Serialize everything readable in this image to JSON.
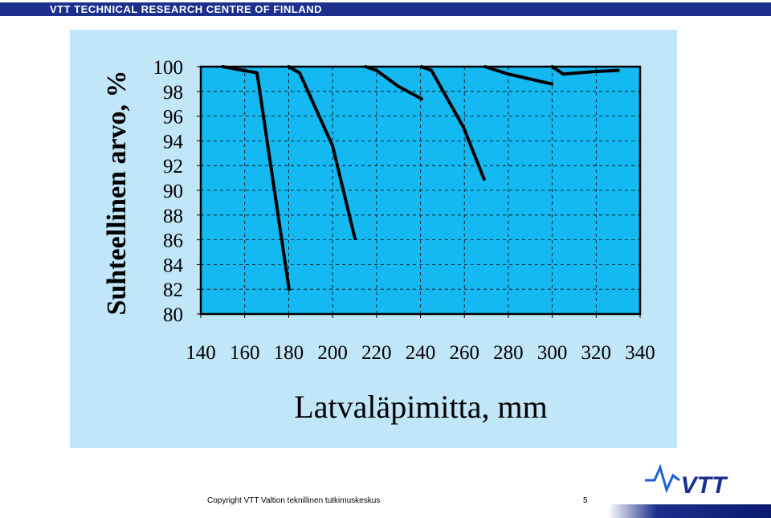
{
  "header": {
    "title": "VTT TECHNICAL RESEARCH CENTRE OF FINLAND"
  },
  "footer": {
    "copyright": "Copyright VTT Valtion teknillinen tutkimuskeskus",
    "page": 5,
    "logo": "VTT"
  },
  "chart_data": {
    "type": "line",
    "y_label": "Suhteellinen arvo, %",
    "x_label": "Latvaläpimitta, mm",
    "xlim": [
      140,
      340
    ],
    "xticks": [
      140,
      160,
      180,
      200,
      220,
      240,
      260,
      280,
      300,
      320,
      340
    ],
    "ylim": [
      80,
      100
    ],
    "yticks": [
      80,
      82,
      84,
      86,
      88,
      90,
      92,
      94,
      96,
      98,
      100
    ],
    "grid": true,
    "series": [
      {
        "color": "#000000",
        "x": [
          150,
          165.6,
          180.2
        ],
        "values": [
          100,
          99.5,
          82.0
        ]
      },
      {
        "color": "#000000",
        "x": [
          180,
          185,
          200,
          210.2
        ],
        "values": [
          100,
          99.5,
          93.6,
          86.1
        ]
      },
      {
        "color": "#000000",
        "x": [
          215,
          220,
          230,
          240.5
        ],
        "values": [
          100,
          99.7,
          98.4,
          97.4
        ]
      },
      {
        "color": "#000000",
        "x": [
          240.5,
          245,
          259.6,
          269
        ],
        "values": [
          100,
          99.7,
          95.1,
          90.9
        ]
      },
      {
        "color": "#000000",
        "x": [
          269.4,
          280,
          290,
          299.8
        ],
        "values": [
          100,
          99.4,
          99.0,
          98.6
        ]
      },
      {
        "color": "#000000",
        "x": [
          300,
          305,
          319,
          330
        ],
        "values": [
          100,
          99.4,
          99.6,
          99.7
        ]
      }
    ]
  }
}
